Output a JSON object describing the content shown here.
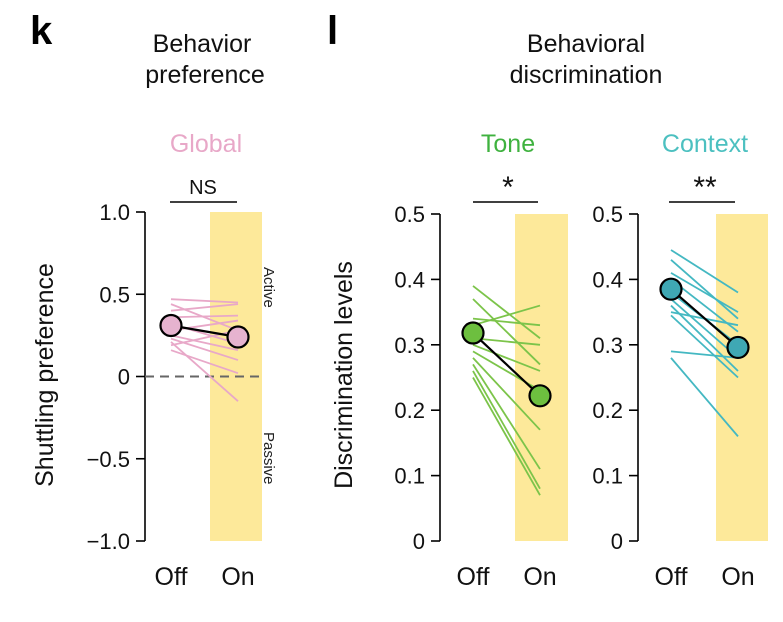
{
  "colors": {
    "global": "#e8a8c8",
    "global_mean": "#e6b3cf",
    "tone": "#3fb23f",
    "tone_lines": "#7cc44a",
    "tone_mean": "#6dbf3f",
    "context": "#4cc0c0",
    "context_lines": "#44b8c2",
    "context_mean": "#3fa8b4",
    "highlight": "#fde99a"
  },
  "chart_data": [
    {
      "type": "line",
      "panel": "k",
      "title": "Behavior preference",
      "title_lines": [
        "Behavior",
        "preference"
      ],
      "subtitle": "Global",
      "ylabel": "Shuttling preference",
      "ylim": [
        -1.0,
        1.0
      ],
      "yticks": [
        1.0,
        0.5,
        0,
        -0.5,
        -1.0
      ],
      "ytick_labels": [
        "1.0",
        "0.5",
        "0",
        "−0.5",
        "−1.0"
      ],
      "categories": [
        "Off",
        "On"
      ],
      "shaded_condition": "On",
      "reference_line": 0,
      "annotations": [
        "Active",
        "Passive"
      ],
      "significance": "NS",
      "mean": [
        0.31,
        0.24
      ],
      "series": [
        {
          "name": "s1",
          "values": [
            0.47,
            0.45
          ]
        },
        {
          "name": "s2",
          "values": [
            0.44,
            0.28
          ]
        },
        {
          "name": "s3",
          "values": [
            0.4,
            0.44
          ]
        },
        {
          "name": "s4",
          "values": [
            0.36,
            0.37
          ]
        },
        {
          "name": "s5",
          "values": [
            0.32,
            0.2
          ]
        },
        {
          "name": "s6",
          "values": [
            0.28,
            0.34
          ]
        },
        {
          "name": "s7",
          "values": [
            0.25,
            0.16
          ]
        },
        {
          "name": "s8",
          "values": [
            0.23,
            0.1
          ]
        },
        {
          "name": "s9",
          "values": [
            0.19,
            0.28
          ]
        },
        {
          "name": "s10",
          "values": [
            0.16,
            0.02
          ]
        },
        {
          "name": "s11",
          "values": [
            0.21,
            -0.15
          ]
        }
      ]
    },
    {
      "type": "line",
      "panel": "l",
      "title": "Behavioral discrimination",
      "title_lines": [
        "Behavioral",
        "discrimination"
      ],
      "subtitle": "Tone",
      "ylabel": "Discrimination levels",
      "ylim": [
        0,
        0.5
      ],
      "yticks": [
        0.5,
        0.4,
        0.3,
        0.2,
        0.1,
        0
      ],
      "ytick_labels": [
        "0.5",
        "0.4",
        "0.3",
        "0.2",
        "0.1",
        "0"
      ],
      "categories": [
        "Off",
        "On"
      ],
      "shaded_condition": "On",
      "significance": "*",
      "mean": [
        0.318,
        0.222
      ],
      "series": [
        {
          "name": "s1",
          "values": [
            0.39,
            0.31
          ]
        },
        {
          "name": "s2",
          "values": [
            0.37,
            0.27
          ]
        },
        {
          "name": "s3",
          "values": [
            0.34,
            0.33
          ]
        },
        {
          "name": "s4",
          "values": [
            0.33,
            0.36
          ]
        },
        {
          "name": "s5",
          "values": [
            0.31,
            0.3
          ]
        },
        {
          "name": "s6",
          "values": [
            0.3,
            0.26
          ]
        },
        {
          "name": "s7",
          "values": [
            0.29,
            0.23
          ]
        },
        {
          "name": "s8",
          "values": [
            0.28,
            0.17
          ]
        },
        {
          "name": "s9",
          "values": [
            0.27,
            0.11
          ]
        },
        {
          "name": "s10",
          "values": [
            0.26,
            0.08
          ]
        },
        {
          "name": "s11",
          "values": [
            0.25,
            0.07
          ]
        }
      ]
    },
    {
      "type": "line",
      "panel": "l",
      "subtitle": "Context",
      "ylim": [
        0,
        0.5
      ],
      "yticks": [
        0.5,
        0.4,
        0.3,
        0.2,
        0.1,
        0
      ],
      "ytick_labels": [
        "0.5",
        "0.4",
        "0.3",
        "0.2",
        "0.1",
        "0"
      ],
      "categories": [
        "Off",
        "On"
      ],
      "shaded_condition": "On",
      "significance": "**",
      "mean": [
        0.385,
        0.296
      ],
      "series": [
        {
          "name": "s1",
          "values": [
            0.445,
            0.38
          ]
        },
        {
          "name": "s2",
          "values": [
            0.43,
            0.34
          ]
        },
        {
          "name": "s3",
          "values": [
            0.41,
            0.35
          ]
        },
        {
          "name": "s4",
          "values": [
            0.4,
            0.32
          ]
        },
        {
          "name": "s5",
          "values": [
            0.38,
            0.3
          ]
        },
        {
          "name": "s6",
          "values": [
            0.37,
            0.28
          ]
        },
        {
          "name": "s7",
          "values": [
            0.36,
            0.26
          ]
        },
        {
          "name": "s8",
          "values": [
            0.35,
            0.33
          ]
        },
        {
          "name": "s9",
          "values": [
            0.345,
            0.25
          ]
        },
        {
          "name": "s10",
          "values": [
            0.29,
            0.28
          ]
        },
        {
          "name": "s11",
          "values": [
            0.28,
            0.16
          ]
        }
      ]
    }
  ]
}
